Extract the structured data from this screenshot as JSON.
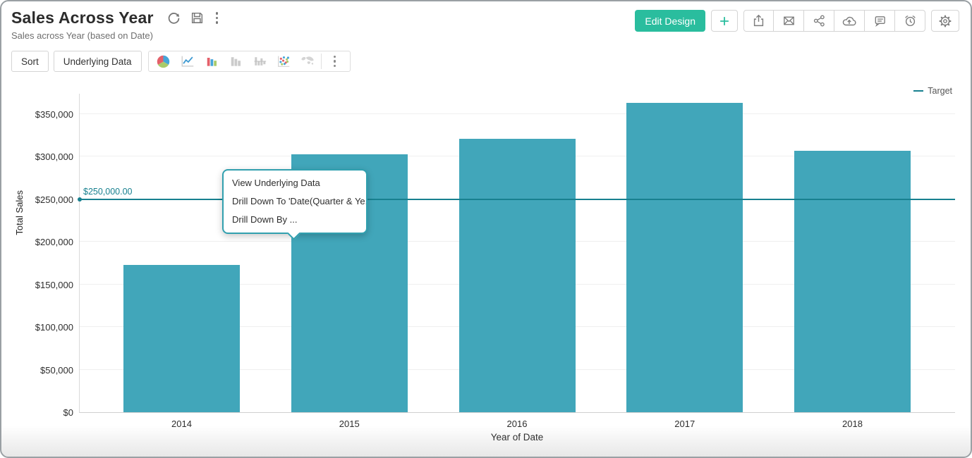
{
  "header": {
    "title": "Sales Across Year",
    "subtitle": "Sales across Year (based on Date)",
    "edit_design_label": "Edit Design",
    "icons": {
      "refresh-icon": "circular-arrow",
      "save-icon": "floppy-disk",
      "more-options-icon": "vertical-kebab",
      "add-icon": "plus",
      "export-icon": "tray-up-arrow",
      "email-icon": "envelope",
      "share-icon": "share-nodes",
      "cloud-upload-icon": "cloud-up-arrow",
      "comment-icon": "speech-bubble",
      "alarm-icon": "alarm-clock",
      "settings-icon": "gear"
    }
  },
  "toolbar": {
    "sort_label": "Sort",
    "underlying_data_label": "Underlying Data",
    "chart_type_icons": [
      "pie-chart-icon",
      "line-chart-icon",
      "bar-chart-icon",
      "column-chart-gray-icon",
      "butterfly-bar-gray-icon",
      "scatter-plot-icon",
      "map-chart-gray-icon"
    ]
  },
  "context_menu": {
    "items": [
      "View Underlying Data",
      "Drill Down To 'Date(Quarter & Ye...",
      "Drill Down By ..."
    ]
  },
  "colors": {
    "accent_green": "#2abd9e",
    "bar_teal": "#41a6ba",
    "target_teal": "#17808f"
  },
  "chart_data": {
    "type": "bar",
    "categories": [
      "2014",
      "2015",
      "2016",
      "2017",
      "2018"
    ],
    "values": [
      173000,
      303000,
      321000,
      363000,
      307000
    ],
    "title": "Sales Across Year",
    "xlabel": "Year of Date",
    "ylabel": "Total Sales",
    "ylim": [
      0,
      350000
    ],
    "ytick_step": 50000,
    "ytick_labels": [
      "$0",
      "$50,000",
      "$100,000",
      "$150,000",
      "$200,000",
      "$250,000",
      "$300,000",
      "$350,000"
    ],
    "grid": true,
    "bar_color": "#41a6ba",
    "legend_position": "top-right",
    "target": {
      "value": 250000,
      "label": "$250,000.00",
      "legend": "Target",
      "color": "#17808f"
    }
  }
}
